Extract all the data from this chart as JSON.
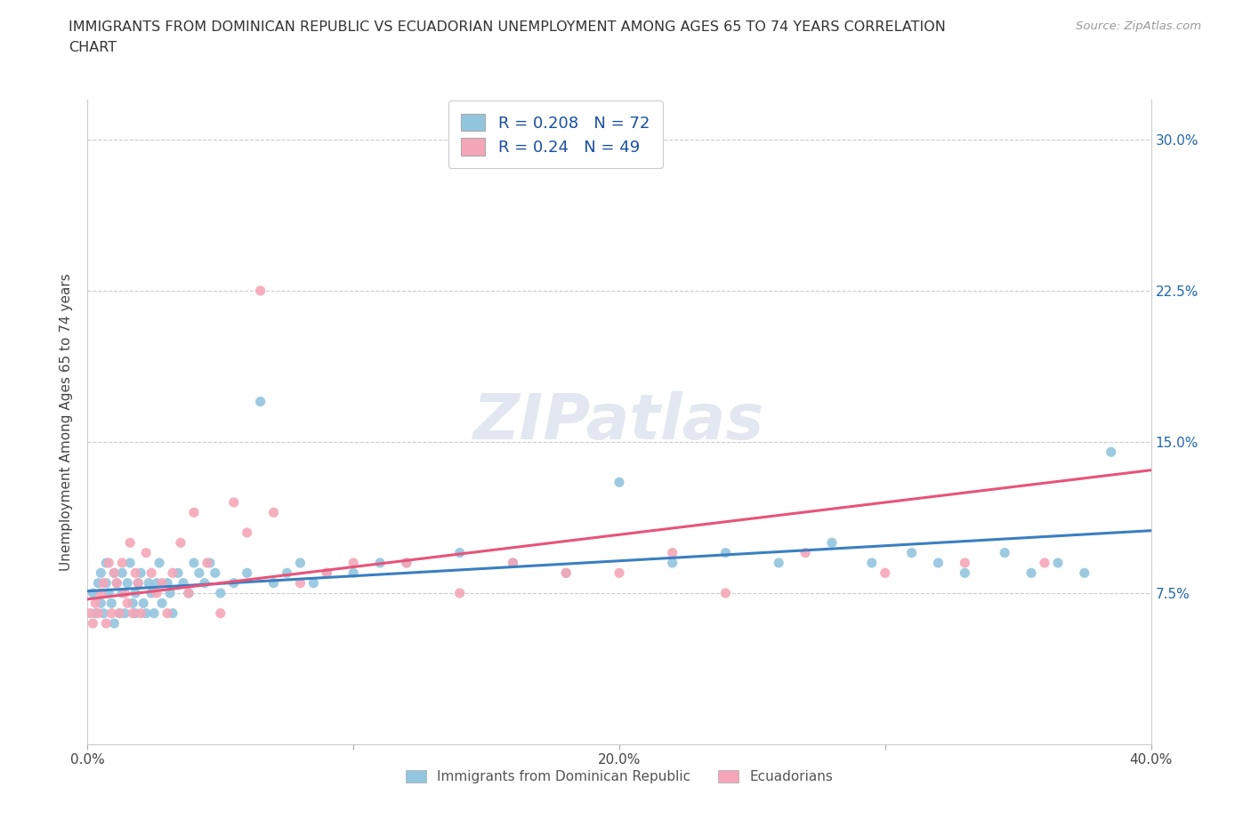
{
  "title_line1": "IMMIGRANTS FROM DOMINICAN REPUBLIC VS ECUADORIAN UNEMPLOYMENT AMONG AGES 65 TO 74 YEARS CORRELATION",
  "title_line2": "CHART",
  "source": "Source: ZipAtlas.com",
  "ylabel": "Unemployment Among Ages 65 to 74 years",
  "xlim": [
    0.0,
    0.4
  ],
  "ylim": [
    0.0,
    0.32
  ],
  "xticks": [
    0.0,
    0.1,
    0.2,
    0.3,
    0.4
  ],
  "xtick_labels": [
    "0.0%",
    "",
    "20.0%",
    "",
    "40.0%"
  ],
  "yticks": [
    0.0,
    0.075,
    0.15,
    0.225,
    0.3
  ],
  "ytick_labels_right": [
    "",
    "7.5%",
    "15.0%",
    "22.5%",
    "30.0%"
  ],
  "blue_color": "#92c5de",
  "pink_color": "#f4a6b8",
  "blue_line_color": "#3a7fc1",
  "pink_line_color": "#e8537a",
  "R_blue": 0.208,
  "N_blue": 72,
  "R_pink": 0.24,
  "N_pink": 49,
  "watermark": "ZIPatlas",
  "blue_scatter_x": [
    0.002,
    0.003,
    0.004,
    0.005,
    0.005,
    0.006,
    0.007,
    0.007,
    0.008,
    0.009,
    0.01,
    0.01,
    0.011,
    0.012,
    0.013,
    0.013,
    0.014,
    0.015,
    0.016,
    0.017,
    0.018,
    0.018,
    0.019,
    0.02,
    0.021,
    0.022,
    0.023,
    0.024,
    0.025,
    0.026,
    0.027,
    0.028,
    0.03,
    0.031,
    0.032,
    0.034,
    0.036,
    0.038,
    0.04,
    0.042,
    0.044,
    0.046,
    0.048,
    0.05,
    0.055,
    0.06,
    0.065,
    0.07,
    0.075,
    0.08,
    0.085,
    0.09,
    0.1,
    0.11,
    0.12,
    0.14,
    0.16,
    0.18,
    0.2,
    0.22,
    0.24,
    0.26,
    0.28,
    0.295,
    0.31,
    0.32,
    0.33,
    0.345,
    0.355,
    0.365,
    0.375,
    0.385
  ],
  "blue_scatter_y": [
    0.075,
    0.065,
    0.08,
    0.07,
    0.085,
    0.065,
    0.08,
    0.09,
    0.075,
    0.07,
    0.085,
    0.06,
    0.08,
    0.065,
    0.085,
    0.075,
    0.065,
    0.08,
    0.09,
    0.07,
    0.075,
    0.065,
    0.08,
    0.085,
    0.07,
    0.065,
    0.08,
    0.075,
    0.065,
    0.08,
    0.09,
    0.07,
    0.08,
    0.075,
    0.065,
    0.085,
    0.08,
    0.075,
    0.09,
    0.085,
    0.08,
    0.09,
    0.085,
    0.075,
    0.08,
    0.085,
    0.17,
    0.08,
    0.085,
    0.09,
    0.08,
    0.085,
    0.085,
    0.09,
    0.09,
    0.095,
    0.09,
    0.085,
    0.13,
    0.09,
    0.095,
    0.09,
    0.1,
    0.09,
    0.095,
    0.09,
    0.085,
    0.095,
    0.085,
    0.09,
    0.085,
    0.145
  ],
  "pink_scatter_x": [
    0.001,
    0.002,
    0.003,
    0.004,
    0.005,
    0.006,
    0.007,
    0.008,
    0.009,
    0.01,
    0.011,
    0.012,
    0.013,
    0.014,
    0.015,
    0.016,
    0.017,
    0.018,
    0.019,
    0.02,
    0.022,
    0.024,
    0.026,
    0.028,
    0.03,
    0.032,
    0.035,
    0.038,
    0.04,
    0.045,
    0.05,
    0.055,
    0.06,
    0.07,
    0.08,
    0.09,
    0.1,
    0.12,
    0.14,
    0.16,
    0.18,
    0.2,
    0.22,
    0.24,
    0.27,
    0.3,
    0.33,
    0.36,
    0.065
  ],
  "pink_scatter_y": [
    0.065,
    0.06,
    0.07,
    0.065,
    0.075,
    0.08,
    0.06,
    0.09,
    0.065,
    0.085,
    0.08,
    0.065,
    0.09,
    0.075,
    0.07,
    0.1,
    0.065,
    0.085,
    0.08,
    0.065,
    0.095,
    0.085,
    0.075,
    0.08,
    0.065,
    0.085,
    0.1,
    0.075,
    0.115,
    0.09,
    0.065,
    0.12,
    0.105,
    0.115,
    0.08,
    0.085,
    0.09,
    0.09,
    0.075,
    0.09,
    0.085,
    0.085,
    0.095,
    0.075,
    0.095,
    0.085,
    0.09,
    0.09,
    0.225
  ],
  "blue_trendline_x": [
    0.0,
    0.4
  ],
  "blue_trendline_y": [
    0.076,
    0.106
  ],
  "pink_trendline_x": [
    0.0,
    0.4
  ],
  "pink_trendline_y": [
    0.072,
    0.136
  ]
}
